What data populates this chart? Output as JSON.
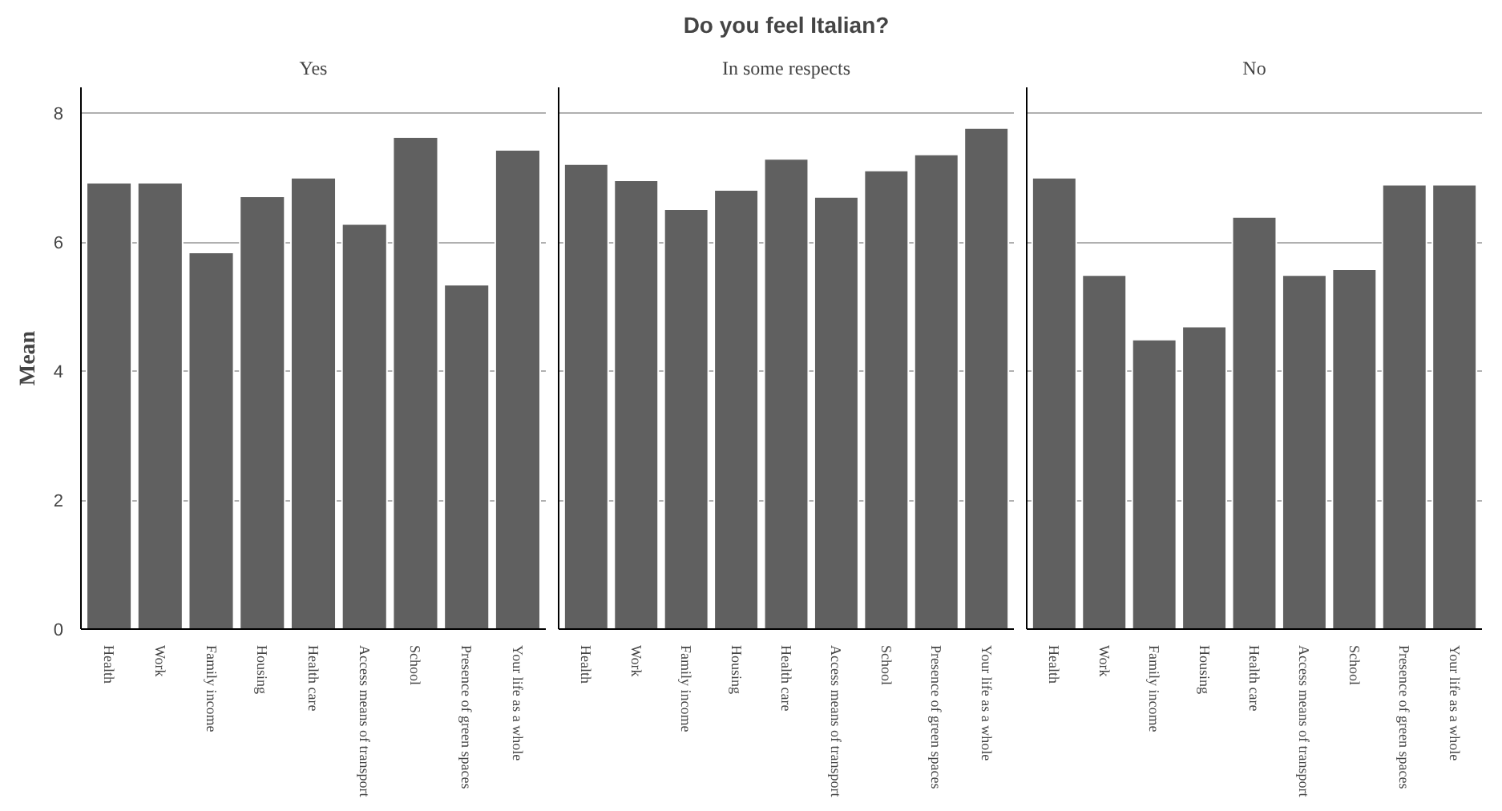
{
  "chart_data": [
    {
      "type": "bar",
      "subtitle": "Yes",
      "ylabel": "Mean",
      "categories": [
        "Health",
        "Work",
        "Family income",
        "Housing",
        "Health care",
        "Access means of transport",
        "School",
        "Presence of green spaces",
        "Your life as a whole"
      ],
      "values": [
        6.92,
        6.92,
        5.84,
        6.71,
        7.0,
        6.28,
        7.63,
        5.34,
        7.43
      ],
      "color": "#606060",
      "ylim": [
        0,
        8.4
      ],
      "yticks": [
        0,
        2,
        4,
        6,
        8
      ],
      "grid": "y"
    },
    {
      "type": "bar",
      "title": "Do you feel Italian?",
      "subtitle": "In some respects",
      "categories": [
        "Health",
        "Work",
        "Family income",
        "Housing",
        "Health care",
        "Access means of transport",
        "School",
        "Presence of green spaces",
        "Your life as a whole"
      ],
      "values": [
        7.21,
        6.96,
        6.51,
        6.81,
        7.29,
        6.7,
        7.11,
        7.36,
        7.77
      ],
      "color": "#606060",
      "ylim": [
        0,
        8.4
      ],
      "yticks": [
        0,
        2,
        4,
        6,
        8
      ],
      "grid": "y",
      "tick_labels": "x"
    },
    {
      "type": "bar",
      "subtitle": "No",
      "categories": [
        "Health",
        "Work",
        "Family income",
        "Housing",
        "Health care",
        "Access means of transport",
        "School",
        "Presence of green spaces",
        "Your life as a whole"
      ],
      "values": [
        7.0,
        5.49,
        4.49,
        4.69,
        6.39,
        5.49,
        5.58,
        6.89,
        6.89
      ],
      "color": "#606060",
      "ylim": [
        0,
        8.4
      ],
      "yticks": [
        0,
        2,
        4,
        6,
        8
      ],
      "grid": "y",
      "tick_labels": "x"
    }
  ]
}
